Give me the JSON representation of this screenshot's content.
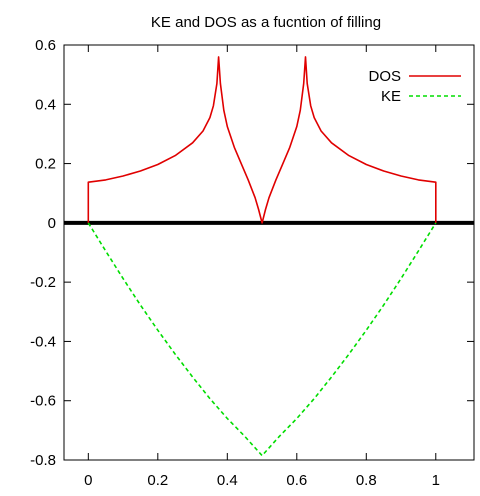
{
  "chart_data": {
    "type": "line",
    "title": "KE and DOS as a fucntion of filling",
    "xlabel": "",
    "ylabel": "",
    "xlim": [
      -0.07,
      1.11
    ],
    "ylim": [
      -0.8,
      0.6
    ],
    "x_ticks": [
      "0",
      "0.2",
      "0.4",
      "0.6",
      "0.8",
      "1"
    ],
    "x_tick_values": [
      0,
      0.2,
      0.4,
      0.6,
      0.8,
      1
    ],
    "y_ticks": [
      "0.6",
      "0.4",
      "0.2",
      "0",
      "-0.2",
      "-0.4",
      "-0.6",
      "-0.8"
    ],
    "y_tick_values": [
      0.6,
      0.4,
      0.2,
      0,
      -0.2,
      -0.4,
      -0.6,
      -0.8
    ],
    "legend_position": "top-right",
    "grid": false,
    "series": [
      {
        "name": "DOS",
        "color": "#e00000",
        "style": "solid",
        "x": [
          0,
          0,
          0.05,
          0.1,
          0.15,
          0.2,
          0.25,
          0.3,
          0.33,
          0.35,
          0.36,
          0.37,
          0.375,
          0.38,
          0.39,
          0.4,
          0.42,
          0.44,
          0.46,
          0.48,
          0.49,
          0.5,
          0.51,
          0.52,
          0.54,
          0.56,
          0.58,
          0.6,
          0.61,
          0.62,
          0.625,
          0.63,
          0.64,
          0.65,
          0.67,
          0.7,
          0.75,
          0.8,
          0.85,
          0.9,
          0.95,
          1,
          1
        ],
        "y": [
          0,
          0.137,
          0.145,
          0.158,
          0.175,
          0.197,
          0.227,
          0.27,
          0.31,
          0.355,
          0.395,
          0.47,
          0.56,
          0.47,
          0.38,
          0.325,
          0.255,
          0.2,
          0.145,
          0.085,
          0.045,
          0,
          0.045,
          0.085,
          0.145,
          0.2,
          0.255,
          0.325,
          0.38,
          0.47,
          0.56,
          0.47,
          0.395,
          0.355,
          0.31,
          0.27,
          0.227,
          0.197,
          0.175,
          0.158,
          0.145,
          0.137,
          0
        ]
      },
      {
        "name": "KE",
        "color": "#00dd00",
        "style": "dashed",
        "x": [
          0,
          0.05,
          0.1,
          0.15,
          0.2,
          0.25,
          0.3,
          0.35,
          0.4,
          0.45,
          0.5,
          0.55,
          0.6,
          0.65,
          0.7,
          0.75,
          0.8,
          0.85,
          0.9,
          0.95,
          1
        ],
        "y": [
          0,
          -0.095,
          -0.188,
          -0.277,
          -0.362,
          -0.443,
          -0.52,
          -0.593,
          -0.66,
          -0.72,
          -0.785,
          -0.72,
          -0.66,
          -0.593,
          -0.52,
          -0.443,
          -0.362,
          -0.277,
          -0.188,
          -0.095,
          0
        ]
      }
    ]
  }
}
